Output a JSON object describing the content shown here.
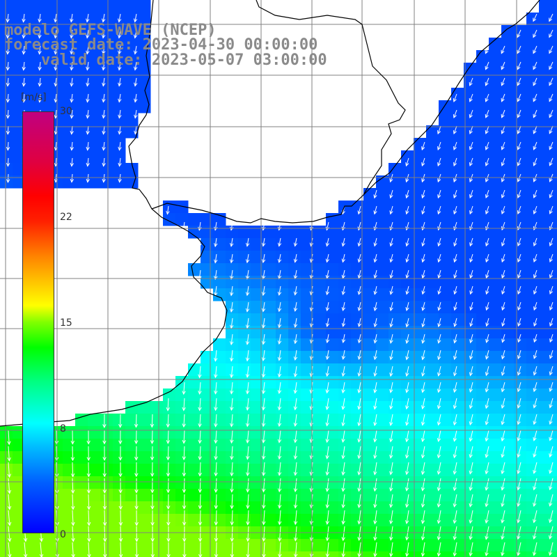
{
  "header": {
    "model_line": "modelo GEFS-WAVE (NCEP)",
    "forecast_line": "forecast date: 2023-04-30 00:00:00",
    "valid_line": "valid date: 2023-05-07 03:00:00"
  },
  "colorbar": {
    "unit": "[m/s]",
    "ticks": [
      "30",
      "22",
      "15",
      "8",
      "0"
    ],
    "tick_values": [
      30,
      22,
      15,
      8,
      0
    ],
    "range": [
      0,
      30
    ]
  },
  "map": {
    "field": "wind speed with direction arrows",
    "arrow_color": "#ffffff",
    "land_color": "#ffffff",
    "coast_color": "#000000",
    "grid_color": "#808080"
  }
}
